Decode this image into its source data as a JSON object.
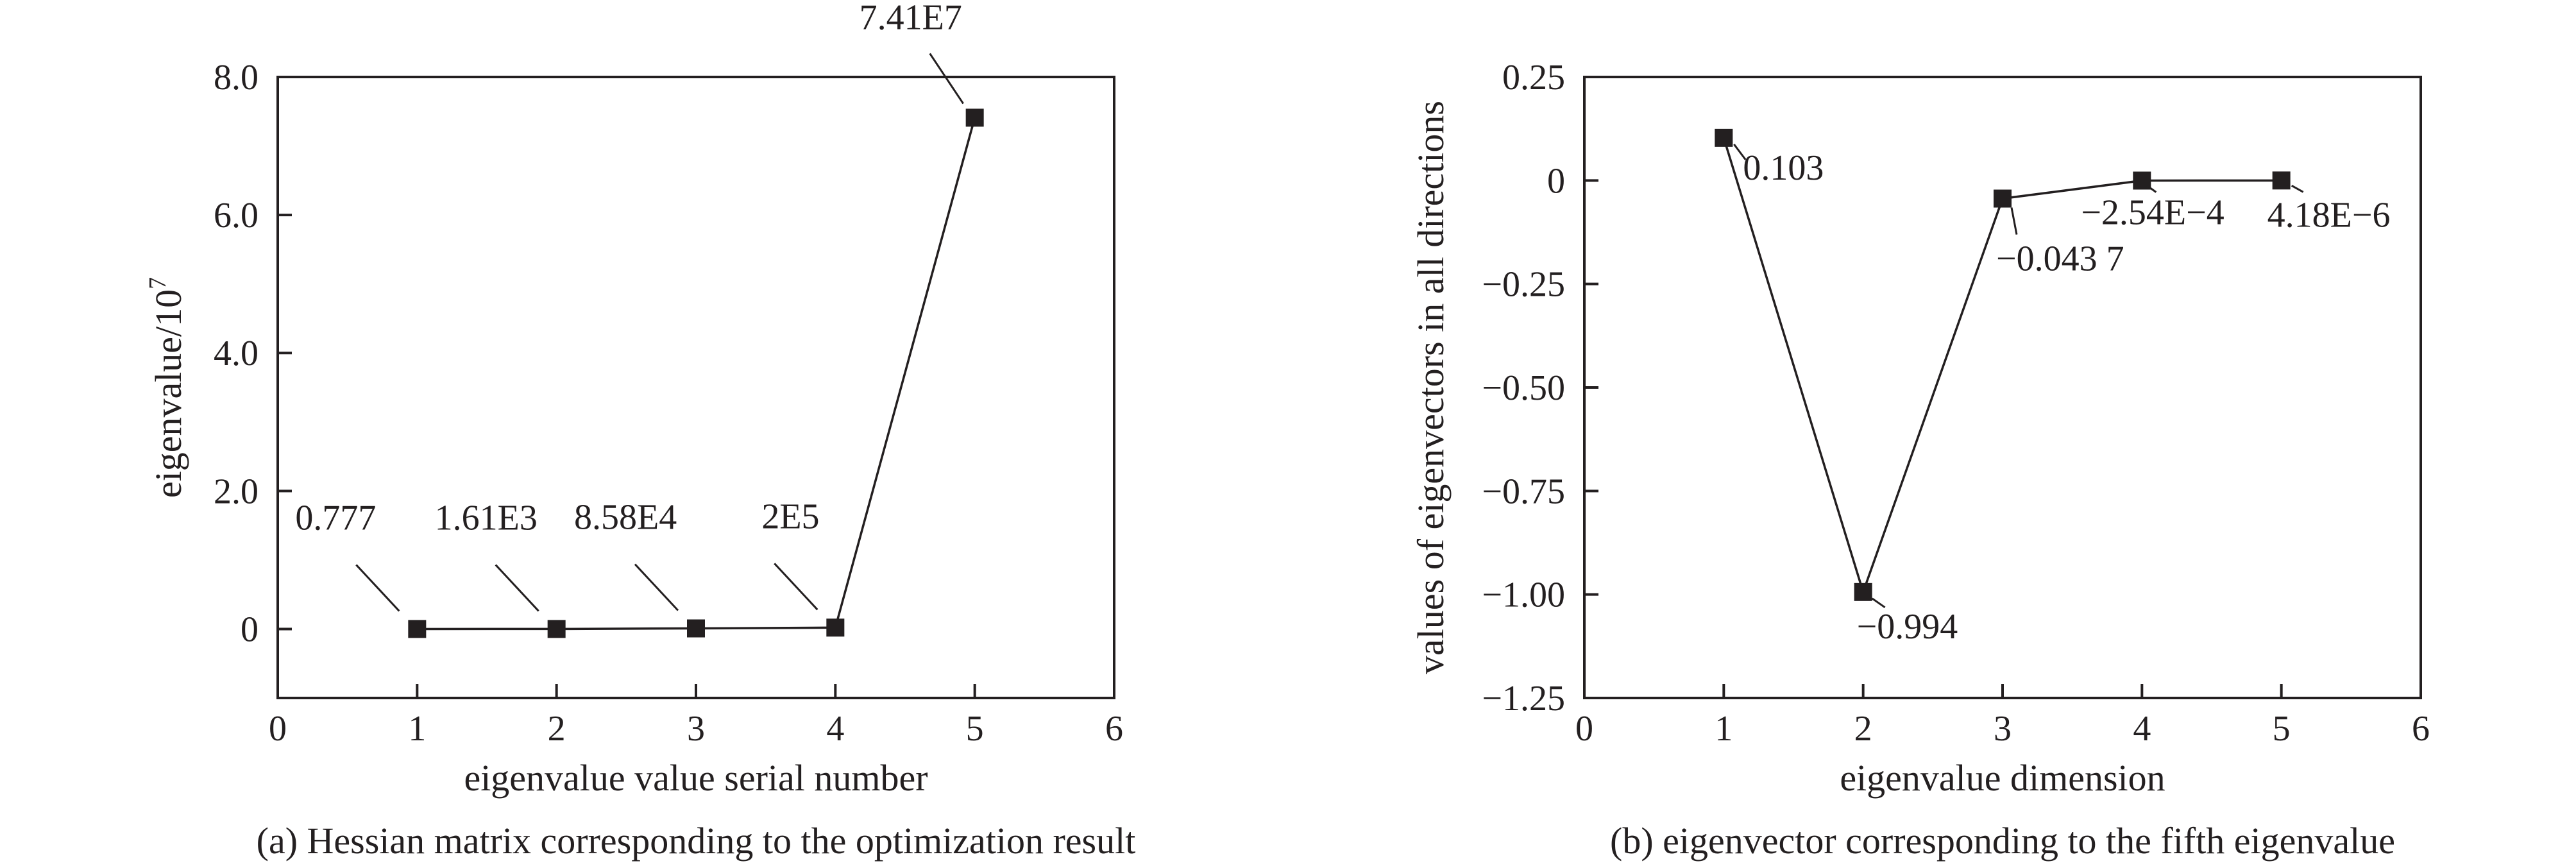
{
  "chart_data": [
    {
      "type": "line",
      "caption": "(a) Hessian matrix corresponding to the optimization result",
      "xlabel": "eigenvalue value serial number",
      "ylabel_main": "eigenvalue/10",
      "ylabel_sup": "7",
      "xlim": [
        0,
        6
      ],
      "ylim": [
        -1.0,
        8.0
      ],
      "xticks": [
        "0",
        "1",
        "2",
        "3",
        "4",
        "5",
        "6"
      ],
      "yticks": [
        "0",
        "2.0",
        "4.0",
        "6.0",
        "8.0"
      ],
      "grid": false,
      "x": [
        1,
        2,
        3,
        4,
        5
      ],
      "y": [
        7.77e-08,
        0.000161,
        0.00858,
        0.02,
        7.41
      ],
      "point_labels": [
        "0.777",
        "1.61E3",
        "8.58E4",
        "2E5",
        "7.41E7"
      ]
    },
    {
      "type": "line",
      "caption": "(b) eigenvector corresponding to the fifth eigenvalue",
      "xlabel": "eigenvalue dimension",
      "ylabel": "values of eigenvectors in all directions",
      "xlim": [
        0,
        6
      ],
      "ylim": [
        -1.25,
        0.25
      ],
      "xticks": [
        "0",
        "1",
        "2",
        "3",
        "4",
        "5",
        "6"
      ],
      "yticks": [
        "−1.25",
        "−1.00",
        "−0.75",
        "−0.50",
        "−0.25",
        "0",
        "0.25"
      ],
      "grid": false,
      "x": [
        1,
        2,
        3,
        4,
        5
      ],
      "y": [
        0.103,
        -0.994,
        -0.0437,
        -0.000254,
        4.18e-06
      ],
      "point_labels": [
        "0.103",
        "−0.994",
        "−0.043 7",
        "−2.54E−4",
        "4.18E−6"
      ]
    }
  ]
}
